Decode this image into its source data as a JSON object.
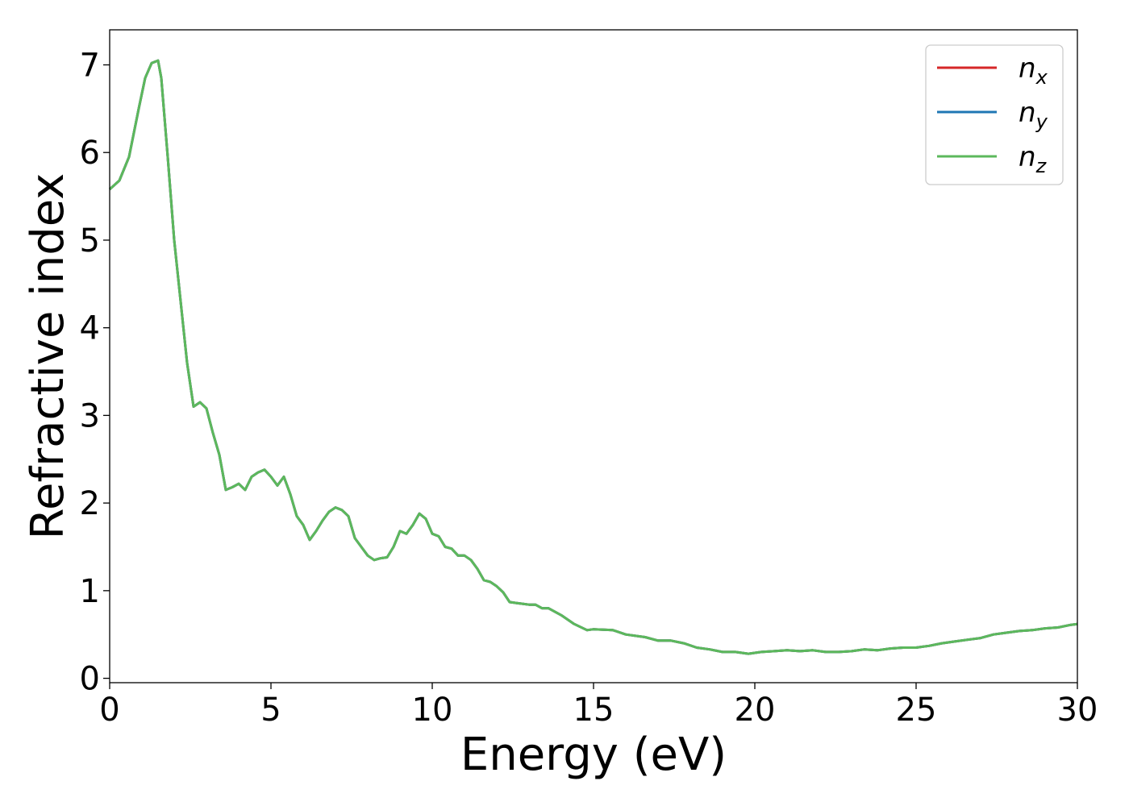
{
  "chart_data": {
    "type": "line",
    "title": "",
    "xlabel": "Energy (eV)",
    "ylabel": "Refractive index",
    "xlim": [
      0,
      30
    ],
    "ylim": [
      -0.05,
      7.4
    ],
    "xticks": [
      0,
      5,
      10,
      15,
      20,
      25,
      30
    ],
    "yticks": [
      0,
      1,
      2,
      3,
      4,
      5,
      6,
      7
    ],
    "grid": false,
    "legend_position": "top-right",
    "x": [
      0,
      0.3,
      0.6,
      0.9,
      1.1,
      1.3,
      1.5,
      1.6,
      1.8,
      2.0,
      2.2,
      2.4,
      2.6,
      2.8,
      3.0,
      3.2,
      3.4,
      3.6,
      3.8,
      4.0,
      4.2,
      4.4,
      4.6,
      4.8,
      5.0,
      5.2,
      5.4,
      5.6,
      5.8,
      6.0,
      6.2,
      6.4,
      6.6,
      6.8,
      7.0,
      7.2,
      7.4,
      7.6,
      7.8,
      8.0,
      8.2,
      8.4,
      8.6,
      8.8,
      9.0,
      9.2,
      9.4,
      9.6,
      9.8,
      10.0,
      10.2,
      10.4,
      10.6,
      10.8,
      11.0,
      11.2,
      11.4,
      11.6,
      11.8,
      12.0,
      12.2,
      12.4,
      12.6,
      12.8,
      13.0,
      13.2,
      13.4,
      13.6,
      13.8,
      14.0,
      14.4,
      14.8,
      15.0,
      15.6,
      16.0,
      16.6,
      17.0,
      17.4,
      17.8,
      18.2,
      18.6,
      19.0,
      19.4,
      19.8,
      20.2,
      20.6,
      21.0,
      21.4,
      21.8,
      22.2,
      22.6,
      23.0,
      23.4,
      23.8,
      24.2,
      24.6,
      25.0,
      25.4,
      25.8,
      26.2,
      26.6,
      27.0,
      27.4,
      27.8,
      28.2,
      28.6,
      29.0,
      29.4,
      29.8,
      30.0
    ],
    "series": [
      {
        "name": "n_x",
        "color": "#d62728",
        "values": [
          5.58,
          5.68,
          5.95,
          6.5,
          6.85,
          7.02,
          7.05,
          6.85,
          5.95,
          5.0,
          4.3,
          3.6,
          3.1,
          3.15,
          3.08,
          2.8,
          2.55,
          2.15,
          2.18,
          2.22,
          2.15,
          2.3,
          2.35,
          2.38,
          2.3,
          2.2,
          2.3,
          2.1,
          1.85,
          1.75,
          1.58,
          1.68,
          1.8,
          1.9,
          1.95,
          1.92,
          1.85,
          1.6,
          1.5,
          1.4,
          1.35,
          1.37,
          1.38,
          1.5,
          1.68,
          1.65,
          1.75,
          1.88,
          1.82,
          1.65,
          1.62,
          1.5,
          1.48,
          1.4,
          1.4,
          1.35,
          1.25,
          1.12,
          1.1,
          1.05,
          0.98,
          0.87,
          0.86,
          0.85,
          0.84,
          0.84,
          0.8,
          0.8,
          0.76,
          0.72,
          0.62,
          0.55,
          0.56,
          0.55,
          0.5,
          0.47,
          0.43,
          0.43,
          0.4,
          0.35,
          0.33,
          0.3,
          0.3,
          0.28,
          0.3,
          0.31,
          0.32,
          0.31,
          0.32,
          0.3,
          0.3,
          0.31,
          0.33,
          0.32,
          0.34,
          0.35,
          0.35,
          0.37,
          0.4,
          0.42,
          0.44,
          0.46,
          0.5,
          0.52,
          0.54,
          0.55,
          0.57,
          0.58,
          0.61,
          0.62
        ]
      },
      {
        "name": "n_y",
        "color": "#1f77b4",
        "values": [
          5.58,
          5.68,
          5.95,
          6.5,
          6.85,
          7.02,
          7.05,
          6.85,
          5.95,
          5.0,
          4.3,
          3.6,
          3.1,
          3.15,
          3.08,
          2.8,
          2.55,
          2.15,
          2.18,
          2.22,
          2.15,
          2.3,
          2.35,
          2.38,
          2.3,
          2.2,
          2.3,
          2.1,
          1.85,
          1.75,
          1.58,
          1.68,
          1.8,
          1.9,
          1.95,
          1.92,
          1.85,
          1.6,
          1.5,
          1.4,
          1.35,
          1.37,
          1.38,
          1.5,
          1.68,
          1.65,
          1.75,
          1.88,
          1.82,
          1.65,
          1.62,
          1.5,
          1.48,
          1.4,
          1.4,
          1.35,
          1.25,
          1.12,
          1.1,
          1.05,
          0.98,
          0.87,
          0.86,
          0.85,
          0.84,
          0.84,
          0.8,
          0.8,
          0.76,
          0.72,
          0.62,
          0.55,
          0.56,
          0.55,
          0.5,
          0.47,
          0.43,
          0.43,
          0.4,
          0.35,
          0.33,
          0.3,
          0.3,
          0.28,
          0.3,
          0.31,
          0.32,
          0.31,
          0.32,
          0.3,
          0.3,
          0.31,
          0.33,
          0.32,
          0.34,
          0.35,
          0.35,
          0.37,
          0.4,
          0.42,
          0.44,
          0.46,
          0.5,
          0.52,
          0.54,
          0.55,
          0.57,
          0.58,
          0.61,
          0.62
        ]
      },
      {
        "name": "n_z",
        "color": "#5cb85c",
        "values": [
          5.58,
          5.68,
          5.95,
          6.5,
          6.85,
          7.02,
          7.05,
          6.85,
          5.95,
          5.0,
          4.3,
          3.6,
          3.1,
          3.15,
          3.08,
          2.8,
          2.55,
          2.15,
          2.18,
          2.22,
          2.15,
          2.3,
          2.35,
          2.38,
          2.3,
          2.2,
          2.3,
          2.1,
          1.85,
          1.75,
          1.58,
          1.68,
          1.8,
          1.9,
          1.95,
          1.92,
          1.85,
          1.6,
          1.5,
          1.4,
          1.35,
          1.37,
          1.38,
          1.5,
          1.68,
          1.65,
          1.75,
          1.88,
          1.82,
          1.65,
          1.62,
          1.5,
          1.48,
          1.4,
          1.4,
          1.35,
          1.25,
          1.12,
          1.1,
          1.05,
          0.98,
          0.87,
          0.86,
          0.85,
          0.84,
          0.84,
          0.8,
          0.8,
          0.76,
          0.72,
          0.62,
          0.55,
          0.56,
          0.55,
          0.5,
          0.47,
          0.43,
          0.43,
          0.4,
          0.35,
          0.33,
          0.3,
          0.3,
          0.28,
          0.3,
          0.31,
          0.32,
          0.31,
          0.32,
          0.3,
          0.3,
          0.31,
          0.33,
          0.32,
          0.34,
          0.35,
          0.35,
          0.37,
          0.4,
          0.42,
          0.44,
          0.46,
          0.5,
          0.52,
          0.54,
          0.55,
          0.57,
          0.58,
          0.61,
          0.62
        ]
      }
    ],
    "legend": [
      {
        "base": "n",
        "sub": "x"
      },
      {
        "base": "n",
        "sub": "y"
      },
      {
        "base": "n",
        "sub": "z"
      }
    ]
  }
}
